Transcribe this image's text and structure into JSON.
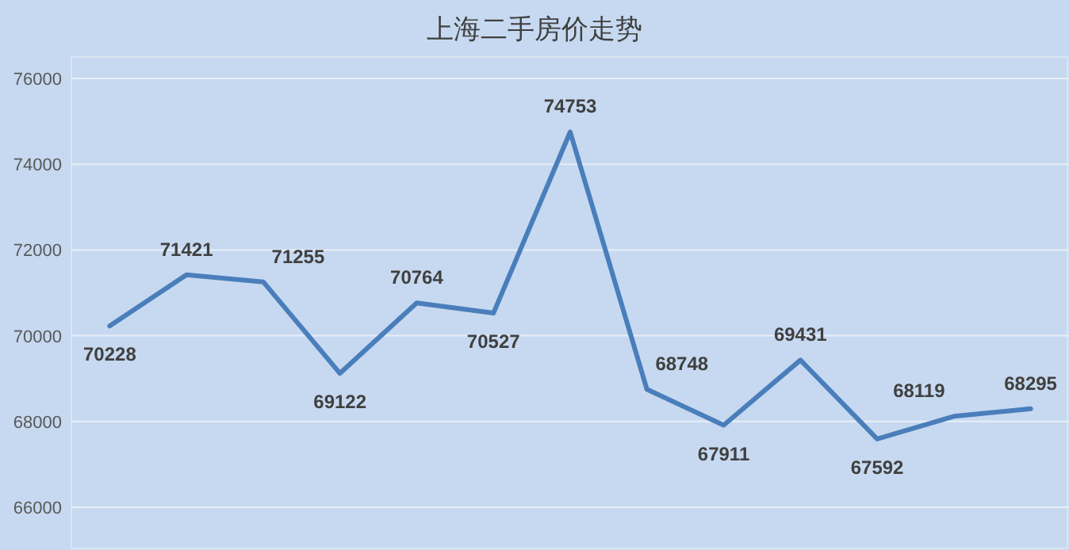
{
  "chart_data": {
    "type": "line",
    "title": "上海二手房价走势",
    "categories": [
      null,
      null,
      null,
      null,
      null,
      null,
      null,
      null,
      null,
      null,
      null,
      null,
      null
    ],
    "series": [
      {
        "color": "#4a7ebb",
        "values": [
          70228,
          71421,
          71255,
          69122,
          70764,
          70527,
          74753,
          68748,
          67911,
          69431,
          67592,
          68119,
          68295
        ]
      }
    ],
    "ylim": [
      65000,
      76500
    ],
    "yticks": [
      66000,
      68000,
      70000,
      72000,
      74000,
      76000
    ],
    "grid": "y",
    "data_labels": true,
    "tick_labels": "y"
  }
}
